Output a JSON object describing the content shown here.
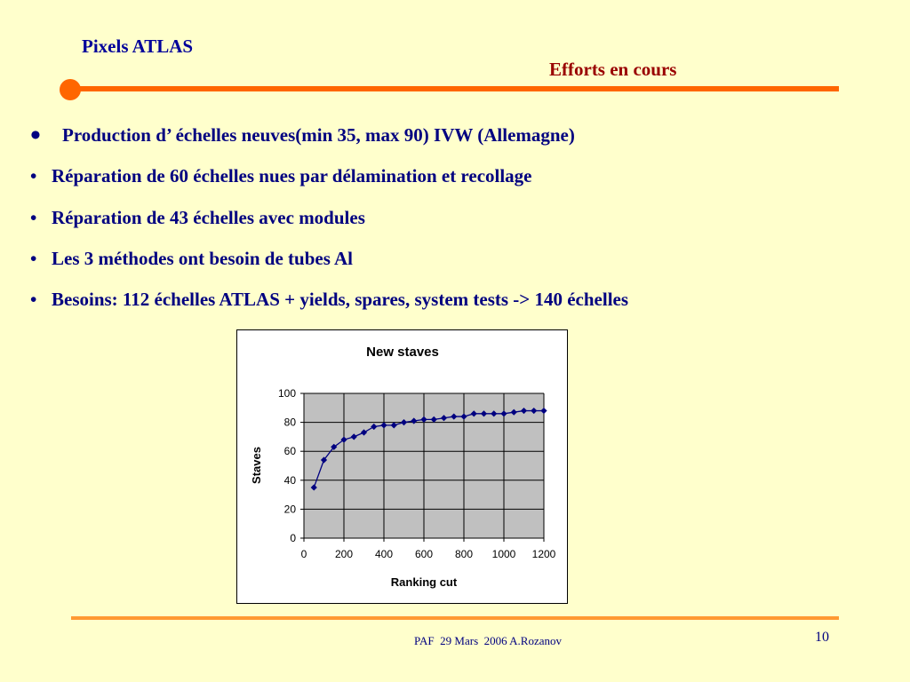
{
  "header": {
    "left_title": "Pixels ATLAS",
    "right_title": "Efforts en cours"
  },
  "bullets": [
    "Production d’ échelles neuves(min 35, max 90) IVW (Allemagne)",
    "Réparation de 60 échelles nues par délamination et recollage",
    "Réparation de 43 échelles avec modules",
    "Les 3 méthodes ont besoin de tubes Al",
    "Besoins: 112 échelles ATLAS + yields, spares, system tests -> 140 échelles"
  ],
  "footer": {
    "text": "PAF  29 Mars  2006 A.Rozanov",
    "page": "10"
  },
  "colors": {
    "background": "#ffffcc",
    "accent_rule": "#ff6600",
    "text_blue": "#000080",
    "text_red": "#990000",
    "plot_bg": "#c0c0c0",
    "series": "#000080"
  },
  "chart_data": {
    "type": "line",
    "title": "New staves",
    "xlabel": "Ranking cut",
    "ylabel": "Staves",
    "xlim": [
      0,
      1200
    ],
    "ylim": [
      0,
      100
    ],
    "xticks": [
      0,
      200,
      400,
      600,
      800,
      1000,
      1200
    ],
    "yticks": [
      0,
      20,
      40,
      60,
      80,
      100
    ],
    "grid": true,
    "legend": false,
    "series": [
      {
        "marker": "diamond",
        "x": [
          50,
          100,
          150,
          200,
          250,
          300,
          350,
          400,
          450,
          500,
          550,
          600,
          650,
          700,
          750,
          800,
          850,
          900,
          950,
          1000,
          1050,
          1100,
          1150,
          1200
        ],
        "y": [
          35,
          54,
          63,
          68,
          70,
          73,
          77,
          78,
          78,
          80,
          81,
          82,
          82,
          83,
          84,
          84,
          86,
          86,
          86,
          86,
          87,
          88,
          88,
          88
        ]
      }
    ]
  }
}
